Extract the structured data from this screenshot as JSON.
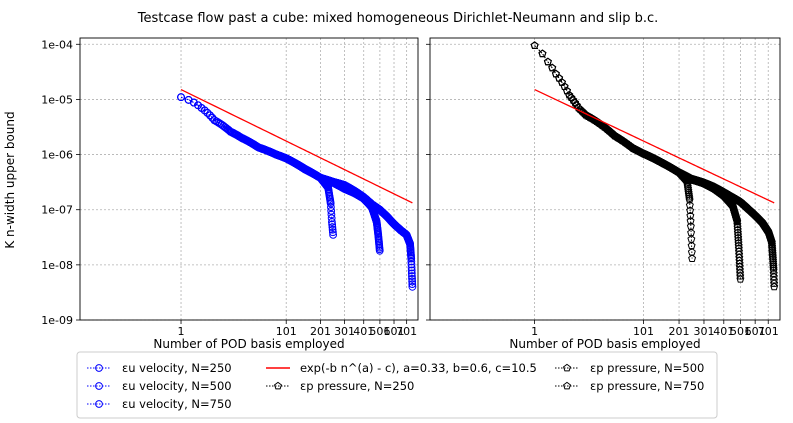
{
  "figure": {
    "title": "Testcase flow past a cube: mixed homogeneous Dirichlet-Neumann and slip b.c."
  },
  "colors": {
    "velocity": "#0000ff",
    "pressure": "#000000",
    "fit": "#ff0000",
    "grid": "#b0b0b0"
  },
  "legend": {
    "items": [
      {
        "label": "εu velocity, N=250",
        "marker": "circle",
        "color": "#0000ff"
      },
      {
        "label": "εu velocity, N=500",
        "marker": "circle",
        "color": "#0000ff"
      },
      {
        "label": "εu velocity, N=750",
        "marker": "circle",
        "color": "#0000ff"
      },
      {
        "label": "exp(-b n^(a) - c), a=0.33, b=0.6, c=10.5",
        "marker": "line",
        "color": "#ff0000"
      },
      {
        "label": "εp pressure, N=250",
        "marker": "pentagon",
        "color": "#000000"
      },
      {
        "label": "εp pressure, N=500",
        "marker": "pentagon",
        "color": "#000000"
      },
      {
        "label": "εp pressure, N=750",
        "marker": "pentagon",
        "color": "#000000"
      }
    ]
  },
  "chart_data": [
    {
      "type": "scatter",
      "panel": "left",
      "xscale": "power-0.33",
      "yscale": "log",
      "xlabel": "Number of POD basis employed",
      "ylabel": "K n-width upper bound",
      "xticks": [
        1,
        101,
        201,
        301,
        401,
        501,
        601,
        701
      ],
      "xtick_labels": [
        "1",
        "101",
        "201",
        "301",
        "401",
        "501",
        "601",
        "701"
      ],
      "yticks": [
        1e-09,
        1e-08,
        1e-07,
        1e-06,
        1e-05,
        0.0001
      ],
      "ytick_labels": [
        "1e-09",
        "1e-08",
        "1e-07",
        "1e-06",
        "1e-05",
        "1e-04"
      ],
      "xlim": [
        -15,
        800
      ],
      "ylim": [
        1e-09,
        0.00013
      ],
      "grid": true,
      "series": [
        {
          "name": "εu velocity, N=250",
          "marker": "circle",
          "color": "#0000ff",
          "n_points": 250,
          "anchors_x": [
            1,
            5,
            10,
            20,
            30,
            50,
            80,
            100,
            150,
            200,
            230,
            240,
            245,
            250
          ],
          "anchors_y": [
            1.1e-05,
            7e-06,
            4.2e-06,
            2.6e-06,
            2e-06,
            1.35e-06,
            1e-06,
            8.6e-07,
            5.5e-07,
            3.8e-07,
            2.5e-07,
            1.3e-07,
            6e-08,
            3.5e-08
          ]
        },
        {
          "name": "εu velocity, N=500",
          "marker": "circle",
          "color": "#0000ff",
          "n_points": 500,
          "anchors_x": [
            1,
            5,
            10,
            20,
            30,
            50,
            80,
            100,
            150,
            200,
            250,
            300,
            350,
            400,
            450,
            480,
            490,
            500
          ],
          "anchors_y": [
            1.1e-05,
            7e-06,
            4.2e-06,
            2.6e-06,
            2e-06,
            1.35e-06,
            1e-06,
            8.6e-07,
            5.4e-07,
            3.8e-07,
            3.1e-07,
            2.4e-07,
            2e-07,
            1.6e-07,
            1.1e-07,
            6e-08,
            3.5e-08,
            1.8e-08
          ]
        },
        {
          "name": "εu velocity, N=750",
          "marker": "circle",
          "color": "#0000ff",
          "n_points": 750,
          "anchors_x": [
            1,
            5,
            10,
            20,
            30,
            50,
            80,
            100,
            150,
            200,
            250,
            300,
            350,
            400,
            450,
            500,
            550,
            600,
            650,
            700,
            730,
            740,
            745,
            750
          ],
          "anchors_y": [
            1.1e-05,
            7e-06,
            4.2e-06,
            2.6e-06,
            2e-06,
            1.35e-06,
            1e-06,
            8.6e-07,
            5.4e-07,
            3.8e-07,
            3.2e-07,
            2.8e-07,
            2.2e-07,
            1.7e-07,
            1.25e-07,
            1e-07,
            7.5e-08,
            5.5e-08,
            4.3e-08,
            3.5e-08,
            2.4e-08,
            1.3e-08,
            7e-09,
            4e-09
          ]
        }
      ],
      "fit": {
        "name": "exp(-b n^(a) - c), a=0.33, b=0.6, c=10.5",
        "a": 0.33,
        "b": 0.6,
        "c": 10.5,
        "x_range": [
          1,
          750
        ]
      }
    },
    {
      "type": "scatter",
      "panel": "right",
      "xscale": "power-0.33",
      "yscale": "log",
      "xlabel": "Number of POD basis employed",
      "ylabel": "",
      "xticks": [
        1,
        101,
        201,
        301,
        401,
        501,
        601,
        701
      ],
      "xtick_labels": [
        "1",
        "101",
        "201",
        "301",
        "401",
        "501",
        "601",
        "701"
      ],
      "xlim": [
        -15,
        800
      ],
      "ylim": [
        1e-09,
        0.00013
      ],
      "grid": true,
      "series": [
        {
          "name": "εp pressure, N=250",
          "marker": "pentagon",
          "color": "#000000",
          "n_points": 250,
          "anchors_x": [
            1,
            3,
            5,
            10,
            15,
            20,
            30,
            50,
            80,
            100,
            150,
            200,
            230,
            240,
            245,
            250
          ],
          "anchors_y": [
            9.5e-05,
            4.8e-05,
            2.9e-05,
            1.2e-05,
            7e-06,
            5.2e-06,
            3.9e-06,
            2.2e-06,
            1.3e-06,
            1.05e-06,
            7e-07,
            4.8e-07,
            3.3e-07,
            1.5e-07,
            5e-08,
            1.3e-08
          ]
        },
        {
          "name": "εp pressure, N=500",
          "marker": "pentagon",
          "color": "#000000",
          "n_points": 500,
          "anchors_x": [
            1,
            3,
            5,
            10,
            15,
            20,
            30,
            50,
            80,
            100,
            150,
            200,
            250,
            300,
            350,
            400,
            450,
            480,
            490,
            500
          ],
          "anchors_y": [
            9.5e-05,
            4.8e-05,
            2.9e-05,
            1.2e-05,
            7e-06,
            5.2e-06,
            3.9e-06,
            2.2e-06,
            1.3e-06,
            1.05e-06,
            7e-07,
            4.8e-07,
            3.5e-07,
            3e-07,
            2.4e-07,
            1.8e-07,
            1.2e-07,
            6e-08,
            2e-08,
            5.5e-09
          ]
        },
        {
          "name": "εp pressure, N=750",
          "marker": "pentagon",
          "color": "#000000",
          "n_points": 750,
          "anchors_x": [
            1,
            3,
            5,
            10,
            15,
            20,
            30,
            50,
            80,
            100,
            150,
            200,
            250,
            300,
            350,
            400,
            450,
            500,
            550,
            600,
            650,
            700,
            730,
            740,
            745,
            750
          ],
          "anchors_y": [
            9.5e-05,
            4.8e-05,
            2.9e-05,
            1.2e-05,
            7e-06,
            5.2e-06,
            3.9e-06,
            2.2e-06,
            1.3e-06,
            1.05e-06,
            7e-07,
            4.8e-07,
            3.6e-07,
            3.1e-07,
            2.6e-07,
            2.1e-07,
            1.7e-07,
            1.4e-07,
            1.05e-07,
            8e-08,
            6e-08,
            4e-08,
            2.5e-08,
            1.2e-08,
            8e-09,
            4e-09
          ]
        }
      ],
      "fit": {
        "name": "exp(-b n^(a) - c), a=0.33, b=0.6, c=10.5",
        "a": 0.33,
        "b": 0.6,
        "c": 10.5,
        "x_range": [
          1,
          750
        ]
      }
    }
  ]
}
